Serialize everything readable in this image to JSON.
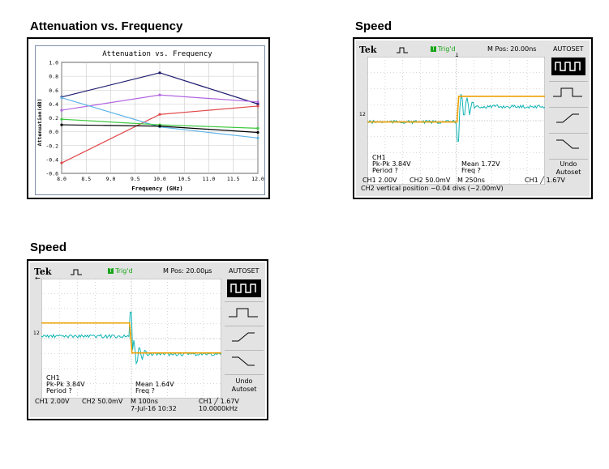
{
  "sections": {
    "attenuation_title": "Attenuation vs.  Frequency",
    "speed1_title": "Speed",
    "speed2_title": "Speed"
  },
  "chart_data": {
    "type": "line",
    "title": "Attenuation vs. Frequency",
    "xlabel": "Frequency (GHz)",
    "ylabel": "Attenuation(dB)",
    "xlim": [
      8.0,
      12.0
    ],
    "ylim": [
      -0.6,
      1.0
    ],
    "x_ticks": [
      "8.0",
      "8.5",
      "9.0",
      "9.5",
      "10.0",
      "10.5",
      "11.0",
      "11.5",
      "12.0"
    ],
    "y_ticks": [
      "1.0",
      "0.8",
      "0.6",
      "0.4",
      "0.2",
      "0.0",
      "-0.2",
      "-0.4",
      "-0.6"
    ],
    "grid": true,
    "x": [
      8.0,
      10.0,
      12.0
    ],
    "series": [
      {
        "color": "#1a1a6e",
        "values": [
          0.5,
          0.85,
          0.4
        ]
      },
      {
        "color": "#b266e0",
        "values": [
          0.31,
          0.53,
          0.43
        ]
      },
      {
        "color": "#e04848",
        "values": [
          -0.45,
          0.25,
          0.37
        ]
      },
      {
        "color": "#60b4e8",
        "values": [
          0.49,
          0.07,
          -0.09
        ]
      },
      {
        "color": "#3cc83c",
        "values": [
          0.18,
          0.1,
          0.05
        ]
      },
      {
        "color": "#000000",
        "values": [
          0.1,
          0.08,
          -0.01
        ]
      }
    ]
  },
  "scope1": {
    "brand": "Tek",
    "trig_icon": "T",
    "trig_label": "Trig'd",
    "mpos": "M Pos: 20.00ns",
    "autoset": "AUTOSET",
    "undo": "Undo",
    "autoset2": "Autoset",
    "ch1_name": "CH1",
    "ch1_pkpk": "Pk-Pk 3.84V",
    "ch1_period": "Period ?",
    "ch1_mean": "Mean 1.72V",
    "ch1_freq": "Freq ?",
    "ch_marker1": "1",
    "ch_marker2": "2",
    "bot_ch1": "CH1  2.00V",
    "bot_ch2": "CH2  50.0mV",
    "bot_m": "M 250ns",
    "bot_trig": "CH1 ╱ 1.67V",
    "status": "CH2 vertical position −0.04 divs (−2.00mV)",
    "colors": {
      "ch1": "#f0a000",
      "ch2": "#10b4b4"
    }
  },
  "scope2": {
    "brand": "Tek",
    "trig_icon": "T",
    "trig_label": "Trig'd",
    "mpos": "M Pos: 20.00µs",
    "autoset": "AUTOSET",
    "undo": "Undo",
    "autoset2": "Autoset",
    "ch1_name": "CH1",
    "ch1_pkpk": "Pk-Pk 3.84V",
    "ch1_period": "Period ?",
    "ch1_mean": "Mean 1.64V",
    "ch1_freq": "Freq ?",
    "ch_marker1": "1",
    "ch_marker2": "2",
    "bot_ch1": "CH1  2.00V",
    "bot_ch2": "CH2  50.0mV",
    "bot_m": "M 100ns",
    "bot_date": "7-Jul-16 10:32",
    "bot_trig": "CH1 ╱ 1.67V",
    "bot_freq": "10.0000kHz",
    "colors": {
      "ch1": "#f0a000",
      "ch2": "#10b4b4"
    }
  }
}
